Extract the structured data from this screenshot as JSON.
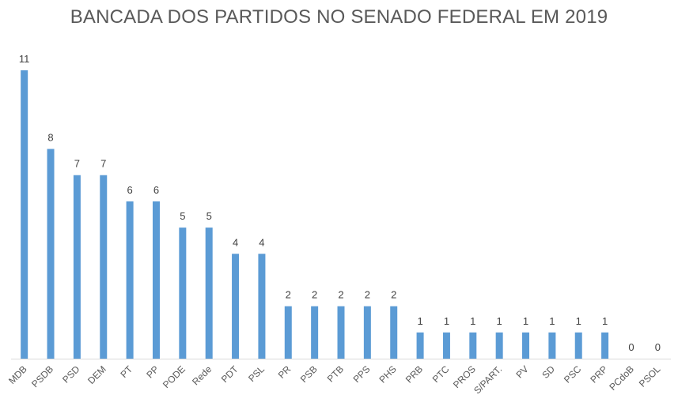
{
  "chart_data": {
    "type": "bar",
    "title": "BANCADA DOS PARTIDOS NO SENADO FEDERAL EM 2019",
    "xlabel": "",
    "ylabel": "",
    "categories": [
      "MDB",
      "PSDB",
      "PSD",
      "DEM",
      "PT",
      "PP",
      "PODE",
      "Rede",
      "PDT",
      "PSL",
      "PR",
      "PSB",
      "PTB",
      "PPS",
      "PHS",
      "PRB",
      "PTC",
      "PROS",
      "S/PART.",
      "PV",
      "SD",
      "PSC",
      "PRP",
      "PCdoB",
      "PSOL"
    ],
    "values": [
      11,
      8,
      7,
      7,
      6,
      6,
      5,
      5,
      4,
      4,
      2,
      2,
      2,
      2,
      2,
      1,
      1,
      1,
      1,
      1,
      1,
      1,
      1,
      0,
      0
    ],
    "ylim": [
      0,
      11
    ],
    "grid": false,
    "legend": "none",
    "data_labels": true,
    "bar_color": "#5B9BD5",
    "axis_color": "#D9D9D9"
  }
}
